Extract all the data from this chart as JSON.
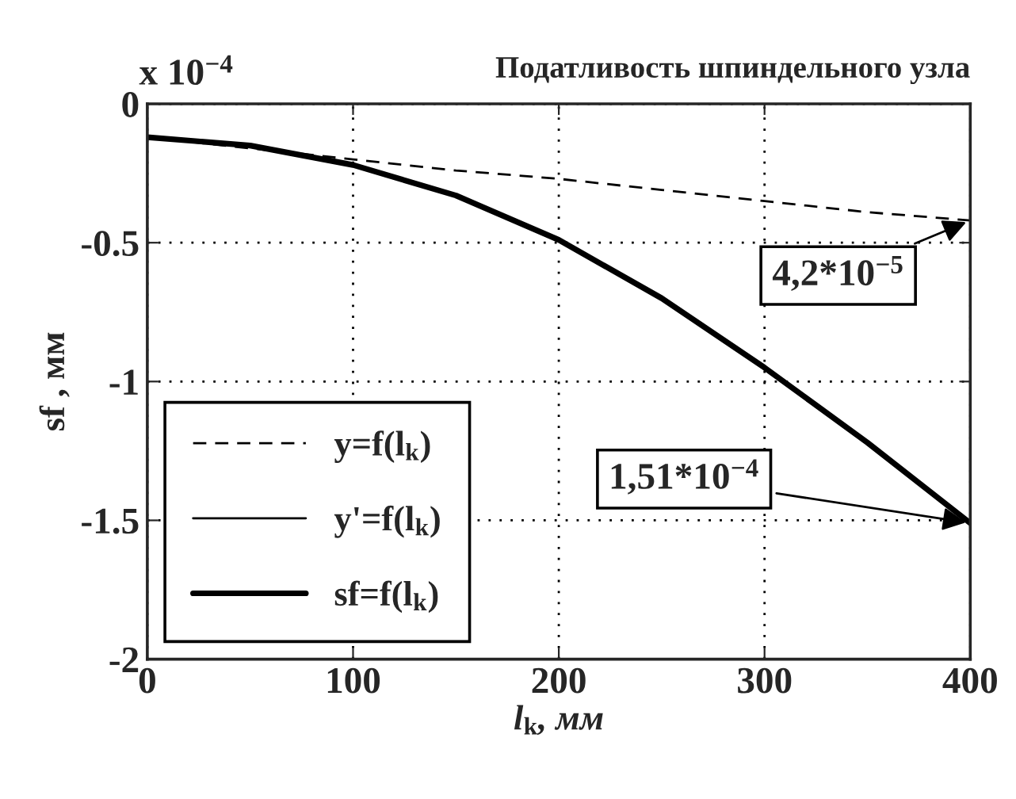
{
  "chart_data": {
    "type": "line",
    "title": "Податливость шпиндельного узла",
    "xlabel": "l$_{k}$, мм",
    "ylabel": "sf , мм",
    "x": [
      0,
      50,
      100,
      150,
      200,
      250,
      300,
      350,
      400
    ],
    "series": [
      {
        "name": "y=f(l$_{k}$)",
        "color": "#000000",
        "line_style": "dashed",
        "values": [
          -0.12,
          -0.16,
          -0.2,
          -0.24,
          -0.27,
          -0.31,
          -0.35,
          -0.39,
          -0.42
        ]
      },
      {
        "name": "y'=f(l$_{k}$)",
        "color": "#000000",
        "line_style": "solid",
        "values": [
          null,
          null,
          null,
          null,
          null,
          null,
          null,
          null,
          null
        ]
      },
      {
        "name": "sf=f(l$_{k}$)",
        "color": "#000000",
        "line_style": "solid",
        "values": [
          -0.12,
          -0.15,
          -0.22,
          -0.33,
          -0.49,
          -0.7,
          -0.95,
          -1.22,
          -1.51
        ]
      }
    ],
    "annotations": [
      "x 10$^{−4}$",
      {
        "text": "4,2*10$^{−5}$",
        "x": 400,
        "y": -0.42
      },
      {
        "text": "1,51*10$^{−4}$",
        "x": 400,
        "y": -1.51
      }
    ],
    "xlim": [
      0,
      400
    ],
    "xticks": [
      0,
      100,
      200,
      300,
      400
    ],
    "ylim": [
      -2,
      0
    ],
    "yticks": [
      -2,
      -1.5,
      -1,
      -0.5,
      0
    ],
    "grid": true,
    "legend": "bottom left",
    "marker": "none"
  }
}
